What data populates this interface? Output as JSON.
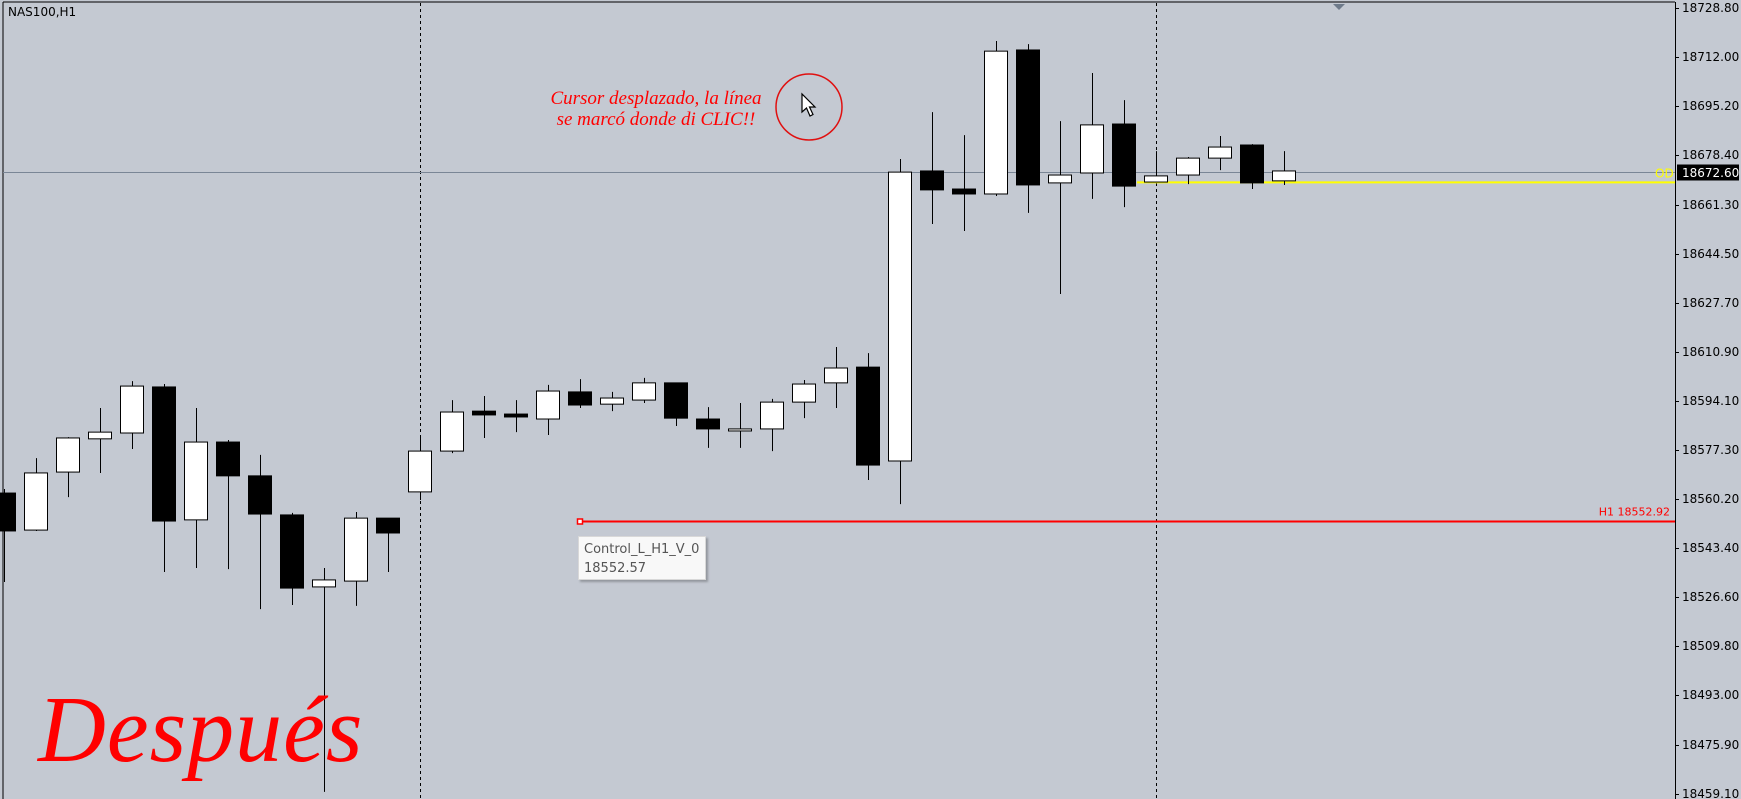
{
  "window": {
    "symbol_label": "NAS100,H1"
  },
  "annotations": {
    "note_line1": "Cursor desplazado, la línea",
    "note_line2": "se marcó donde di CLIC!!",
    "after_label": "Después",
    "note_color": "#ff0000",
    "cursor_icon": "mouse-pointer-icon"
  },
  "tooltip": {
    "name": "Control_L_H1_V_0",
    "value": "18552.57"
  },
  "lines": {
    "current_price": {
      "value": 18672.6,
      "label": "18672.60",
      "tag": "OD",
      "tag_color": "#ffff00"
    },
    "control_line": {
      "value": 18552.92,
      "label": "H1 18552.92",
      "color": "#ff0000"
    },
    "yellow_level": {
      "value": 18669.0,
      "color": "#ffff00"
    }
  },
  "chart_data": {
    "type": "candlestick",
    "title": "NAS100,H1",
    "xlabel": "",
    "ylabel": "",
    "ylim": [
      18456.0,
      18731.5
    ],
    "y_ticks": [
      "18728.80",
      "18712.00",
      "18695.20",
      "18678.40",
      "18661.30",
      "18644.50",
      "18627.70",
      "18610.90",
      "18594.10",
      "18577.30",
      "18560.20",
      "18543.40",
      "18526.60",
      "18509.80",
      "18493.00",
      "18475.90",
      "18459.10"
    ],
    "grid": false,
    "period_separators_at_candle": [
      13,
      36
    ],
    "colors": {
      "background": "#c4c9d2",
      "bull": "#ffffff",
      "bear": "#000000",
      "axis": "#000000"
    },
    "candles": [
      {
        "o": 18562.4,
        "h": 18563.8,
        "l": 18531.9,
        "c": 18549.4
      },
      {
        "o": 18549.7,
        "h": 18574.4,
        "l": 18549.4,
        "c": 18569.3
      },
      {
        "o": 18569.6,
        "h": 18581.6,
        "l": 18561.0,
        "c": 18581.3
      },
      {
        "o": 18581.0,
        "h": 18591.6,
        "l": 18569.3,
        "c": 18583.3
      },
      {
        "o": 18583.0,
        "h": 18600.8,
        "l": 18577.5,
        "c": 18599.1
      },
      {
        "o": 18598.8,
        "h": 18599.8,
        "l": 18535.3,
        "c": 18552.8
      },
      {
        "o": 18553.2,
        "h": 18591.6,
        "l": 18536.7,
        "c": 18579.9
      },
      {
        "o": 18579.9,
        "h": 18580.6,
        "l": 18536.3,
        "c": 18568.3
      },
      {
        "o": 18568.3,
        "h": 18575.5,
        "l": 18522.6,
        "c": 18555.2
      },
      {
        "o": 18554.9,
        "h": 18555.6,
        "l": 18524.0,
        "c": 18529.8
      },
      {
        "o": 18530.2,
        "h": 18536.7,
        "l": 18459.9,
        "c": 18532.6
      },
      {
        "o": 18532.2,
        "h": 18555.9,
        "l": 18523.7,
        "c": 18553.8
      },
      {
        "o": 18553.8,
        "h": 18553.8,
        "l": 18535.3,
        "c": 18548.7
      },
      {
        "o": 18562.8,
        "h": 18581.3,
        "l": 18560.0,
        "c": 18576.8
      },
      {
        "o": 18576.8,
        "h": 18594.3,
        "l": 18576.1,
        "c": 18590.2
      },
      {
        "o": 18590.5,
        "h": 18595.7,
        "l": 18581.3,
        "c": 18589.2
      },
      {
        "o": 18589.5,
        "h": 18594.3,
        "l": 18583.3,
        "c": 18588.5
      },
      {
        "o": 18587.8,
        "h": 18599.5,
        "l": 18582.3,
        "c": 18597.4
      },
      {
        "o": 18597.1,
        "h": 18601.5,
        "l": 18591.6,
        "c": 18592.6
      },
      {
        "o": 18592.9,
        "h": 18597.1,
        "l": 18590.5,
        "c": 18595.0
      },
      {
        "o": 18594.3,
        "h": 18601.9,
        "l": 18593.3,
        "c": 18600.2
      },
      {
        "o": 18600.2,
        "h": 18600.2,
        "l": 18585.4,
        "c": 18588.1
      },
      {
        "o": 18587.8,
        "h": 18591.9,
        "l": 18577.9,
        "c": 18584.4
      },
      {
        "o": 18583.7,
        "h": 18593.3,
        "l": 18577.9,
        "c": 18584.4
      },
      {
        "o": 18584.4,
        "h": 18594.7,
        "l": 18576.8,
        "c": 18593.6
      },
      {
        "o": 18593.6,
        "h": 18601.2,
        "l": 18588.1,
        "c": 18599.8
      },
      {
        "o": 18600.2,
        "h": 18612.5,
        "l": 18591.6,
        "c": 18605.3
      },
      {
        "o": 18605.6,
        "h": 18610.4,
        "l": 18566.9,
        "c": 18572.0
      },
      {
        "o": 18573.4,
        "h": 18677.0,
        "l": 18558.6,
        "c": 18672.5
      },
      {
        "o": 18672.9,
        "h": 18693.1,
        "l": 18654.7,
        "c": 18666.4
      },
      {
        "o": 18666.7,
        "h": 18685.2,
        "l": 18652.3,
        "c": 18665.0
      },
      {
        "o": 18665.0,
        "h": 18717.5,
        "l": 18664.3,
        "c": 18714.0
      },
      {
        "o": 18714.4,
        "h": 18716.4,
        "l": 18658.5,
        "c": 18668.1
      },
      {
        "o": 18668.8,
        "h": 18690.0,
        "l": 18630.7,
        "c": 18671.5
      },
      {
        "o": 18672.2,
        "h": 18706.5,
        "l": 18663.3,
        "c": 18688.7
      },
      {
        "o": 18689.0,
        "h": 18697.2,
        "l": 18660.5,
        "c": 18667.7
      },
      {
        "o": 18669.1,
        "h": 18679.7,
        "l": 18669.0,
        "c": 18671.2
      },
      {
        "o": 18671.5,
        "h": 18677.7,
        "l": 18668.4,
        "c": 18677.3
      },
      {
        "o": 18677.3,
        "h": 18684.9,
        "l": 18673.2,
        "c": 18681.1
      },
      {
        "o": 18681.8,
        "h": 18682.1,
        "l": 18666.7,
        "c": 18668.8
      },
      {
        "o": 18669.5,
        "h": 18679.7,
        "l": 18668.1,
        "c": 18672.9
      }
    ]
  }
}
